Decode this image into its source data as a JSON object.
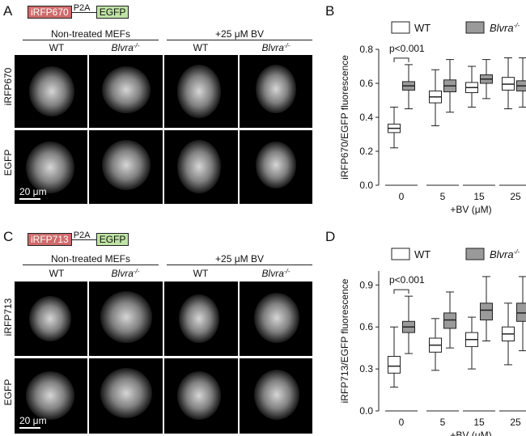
{
  "panels": [
    {
      "letter": "A",
      "construct": {
        "fp": "iRFP670",
        "link": "P2A",
        "reporter": "EGFP"
      },
      "groups": [
        "Non-treated MEFs",
        "+25 μM BV"
      ],
      "columns": [
        "WT",
        "Blvra",
        "WT",
        "Blvra"
      ],
      "knockout_sup": "-/-",
      "rows": [
        "iRFP670",
        "EGFP"
      ],
      "scalebar": "20 μm"
    },
    {
      "letter": "C",
      "construct": {
        "fp": "iRFP713",
        "link": "P2A",
        "reporter": "EGFP"
      },
      "groups": [
        "Non-treated MEFs",
        "+25 μM BV"
      ],
      "columns": [
        "WT",
        "Blvra",
        "WT",
        "Blvra"
      ],
      "knockout_sup": "-/-",
      "rows": [
        "iRFP713",
        "EGFP"
      ],
      "scalebar": "20 μm"
    }
  ],
  "chart_letters": [
    "B",
    "D"
  ],
  "legend": {
    "wt": "WT",
    "ko": "Blvra",
    "ko_sup": "-/-"
  },
  "colors": {
    "wt": "#ffffff",
    "ko": "#9a9a9a",
    "stroke": "#222222",
    "construct_red": "#cf6b6b",
    "construct_green": "#bfe3a6"
  },
  "chart_data": [
    {
      "type": "box",
      "ylabel": "iRFP670/EGFP fluorescence",
      "xlabel": "+BV (μM)",
      "categories": [
        "0",
        "5",
        "15",
        "25"
      ],
      "ylim": [
        0,
        0.8
      ],
      "yticks": [
        "0.0",
        "0.2",
        "0.4",
        "0.6",
        "0.8"
      ],
      "annotation": "p<0.001",
      "series": [
        {
          "name": "WT",
          "boxes": [
            {
              "min": 0.22,
              "q1": 0.31,
              "median": 0.335,
              "q3": 0.36,
              "max": 0.46
            },
            {
              "min": 0.35,
              "q1": 0.485,
              "median": 0.52,
              "q3": 0.555,
              "max": 0.68
            },
            {
              "min": 0.46,
              "q1": 0.545,
              "median": 0.575,
              "q3": 0.605,
              "max": 0.7
            },
            {
              "min": 0.45,
              "q1": 0.56,
              "median": 0.595,
              "q3": 0.635,
              "max": 0.75
            }
          ]
        },
        {
          "name": "Blvra-/-",
          "boxes": [
            {
              "min": 0.45,
              "q1": 0.56,
              "median": 0.585,
              "q3": 0.61,
              "max": 0.71
            },
            {
              "min": 0.43,
              "q1": 0.55,
              "median": 0.585,
              "q3": 0.62,
              "max": 0.74
            },
            {
              "min": 0.51,
              "q1": 0.6,
              "median": 0.625,
              "q3": 0.65,
              "max": 0.74
            },
            {
              "min": 0.46,
              "q1": 0.555,
              "median": 0.585,
              "q3": 0.615,
              "max": 0.75
            }
          ]
        }
      ]
    },
    {
      "type": "box",
      "ylabel": "iRFP713/EGFP fluorescence",
      "xlabel": "+BV (μM)",
      "categories": [
        "0",
        "5",
        "15",
        "25"
      ],
      "ylim": [
        0,
        1.0
      ],
      "yticks": [
        "0.0",
        "0.3",
        "0.6",
        "0.9"
      ],
      "annotation": "p<0.001",
      "series": [
        {
          "name": "WT",
          "boxes": [
            {
              "min": 0.17,
              "q1": 0.27,
              "median": 0.32,
              "q3": 0.39,
              "max": 0.6
            },
            {
              "min": 0.29,
              "q1": 0.42,
              "median": 0.47,
              "q3": 0.52,
              "max": 0.66
            },
            {
              "min": 0.3,
              "q1": 0.46,
              "median": 0.51,
              "q3": 0.56,
              "max": 0.67
            },
            {
              "min": 0.33,
              "q1": 0.5,
              "median": 0.55,
              "q3": 0.6,
              "max": 0.77
            }
          ]
        },
        {
          "name": "Blvra-/-",
          "boxes": [
            {
              "min": 0.41,
              "q1": 0.56,
              "median": 0.6,
              "q3": 0.64,
              "max": 0.82
            },
            {
              "min": 0.45,
              "q1": 0.59,
              "median": 0.65,
              "q3": 0.7,
              "max": 0.85
            },
            {
              "min": 0.5,
              "q1": 0.65,
              "median": 0.72,
              "q3": 0.77,
              "max": 0.96
            },
            {
              "min": 0.43,
              "q1": 0.64,
              "median": 0.7,
              "q3": 0.77,
              "max": 0.96
            }
          ]
        }
      ]
    }
  ]
}
